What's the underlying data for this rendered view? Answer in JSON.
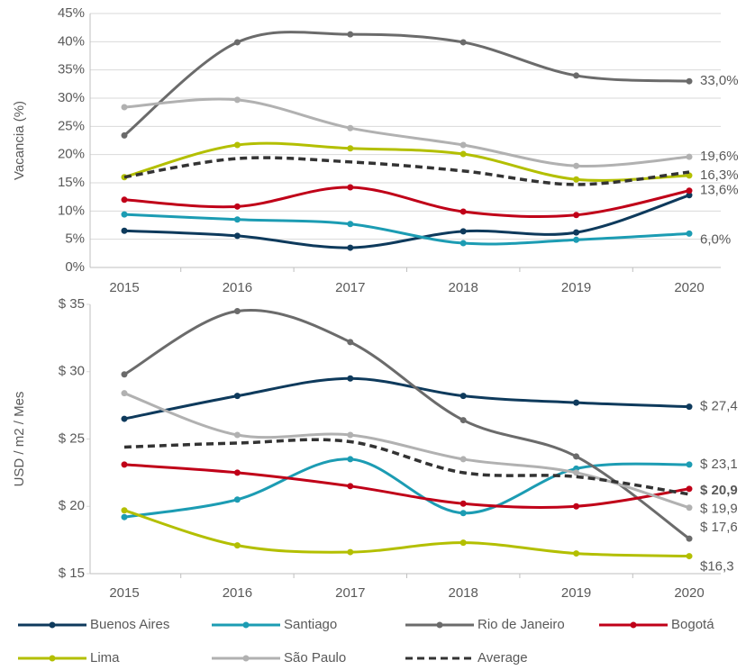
{
  "chart_data": [
    {
      "type": "line",
      "y_label": "Vacancia (%)",
      "categories": [
        "2015",
        "2016",
        "2017",
        "2018",
        "2019",
        "2020"
      ],
      "ylim": [
        0,
        45
      ],
      "yticks": [
        {
          "value": 0,
          "label": "0%"
        },
        {
          "value": 5,
          "label": "5%"
        },
        {
          "value": 10,
          "label": "10%"
        },
        {
          "value": 15,
          "label": "15%"
        },
        {
          "value": 20,
          "label": "20%"
        },
        {
          "value": 25,
          "label": "25%"
        },
        {
          "value": 30,
          "label": "30%"
        },
        {
          "value": 35,
          "label": "35%"
        },
        {
          "value": 40,
          "label": "40%"
        },
        {
          "value": 45,
          "label": "45%"
        }
      ],
      "grid": true,
      "series": [
        {
          "name": "Buenos Aires",
          "color": "#0e3a5c",
          "values": [
            6.5,
            5.6,
            3.5,
            6.4,
            6.2,
            12.8
          ]
        },
        {
          "name": "Santiago",
          "color": "#1c9cb3",
          "values": [
            9.4,
            8.5,
            7.7,
            4.3,
            4.9,
            6.0
          ],
          "value_labels": [
            null,
            null,
            null,
            null,
            null,
            "6,0%"
          ]
        },
        {
          "name": "Rio de Janeiro",
          "color": "#6b6b6b",
          "values": [
            23.4,
            39.9,
            41.3,
            39.9,
            34.0,
            33.0
          ],
          "value_labels": [
            null,
            null,
            null,
            null,
            null,
            "33,0%"
          ]
        },
        {
          "name": "Bogotá",
          "color": "#c00018",
          "values": [
            12.0,
            10.8,
            14.2,
            9.9,
            9.3,
            13.6
          ],
          "value_labels": [
            null,
            null,
            null,
            null,
            null,
            "13,6%"
          ]
        },
        {
          "name": "Lima",
          "color": "#b3bf00",
          "values": [
            16.0,
            21.7,
            21.1,
            20.1,
            15.6,
            16.3
          ],
          "value_labels": [
            null,
            null,
            null,
            null,
            null,
            "16,3%"
          ]
        },
        {
          "name": "São Paulo",
          "color": "#b1b1b1",
          "values": [
            28.4,
            29.7,
            24.7,
            21.7,
            18.0,
            19.6
          ],
          "value_labels": [
            null,
            null,
            null,
            null,
            null,
            "19,6%"
          ]
        },
        {
          "name": "Average",
          "color": "#333333",
          "style": "dashed",
          "values": [
            16.0,
            19.3,
            18.7,
            17.1,
            14.7,
            16.9
          ]
        }
      ]
    },
    {
      "type": "line",
      "y_label": "USD / m2 / Mes",
      "categories": [
        "2015",
        "2016",
        "2017",
        "2018",
        "2019",
        "2020"
      ],
      "ylim": [
        15,
        35
      ],
      "yticks": [
        {
          "value": 15,
          "label": "$ 15"
        },
        {
          "value": 20,
          "label": "$ 20"
        },
        {
          "value": 25,
          "label": "$ 25"
        },
        {
          "value": 30,
          "label": "$ 30"
        },
        {
          "value": 35,
          "label": "$ 35"
        }
      ],
      "grid": false,
      "series": [
        {
          "name": "Buenos Aires",
          "color": "#0e3a5c",
          "values": [
            26.5,
            28.2,
            29.5,
            28.2,
            27.7,
            27.4
          ],
          "value_labels": [
            null,
            null,
            null,
            null,
            null,
            "$ 27,4"
          ]
        },
        {
          "name": "Santiago",
          "color": "#1c9cb3",
          "values": [
            19.2,
            20.5,
            23.5,
            19.5,
            22.8,
            23.1
          ],
          "value_labels": [
            null,
            null,
            null,
            null,
            null,
            "$ 23,1"
          ]
        },
        {
          "name": "Rio de Janeiro",
          "color": "#6b6b6b",
          "values": [
            29.8,
            34.5,
            32.2,
            26.4,
            23.7,
            17.6
          ],
          "value_labels": [
            null,
            null,
            null,
            null,
            null,
            "$ 17,6"
          ]
        },
        {
          "name": "Bogotá",
          "color": "#c00018",
          "values": [
            23.1,
            22.5,
            21.5,
            20.2,
            20.0,
            21.3
          ]
        },
        {
          "name": "Lima",
          "color": "#b3bf00",
          "values": [
            19.7,
            17.1,
            16.6,
            17.3,
            16.5,
            16.3
          ],
          "value_labels": [
            null,
            null,
            null,
            null,
            null,
            "$16,3"
          ]
        },
        {
          "name": "São Paulo",
          "color": "#b1b1b1",
          "values": [
            28.4,
            25.3,
            25.3,
            23.5,
            22.5,
            19.9
          ],
          "value_labels": [
            null,
            null,
            null,
            null,
            null,
            "$ 19,9"
          ]
        },
        {
          "name": "Average",
          "color": "#333333",
          "style": "dashed",
          "values": [
            24.4,
            24.7,
            24.8,
            22.5,
            22.2,
            20.9
          ],
          "value_labels": [
            null,
            null,
            null,
            null,
            null,
            "$ 20,9"
          ]
        }
      ]
    }
  ]
}
